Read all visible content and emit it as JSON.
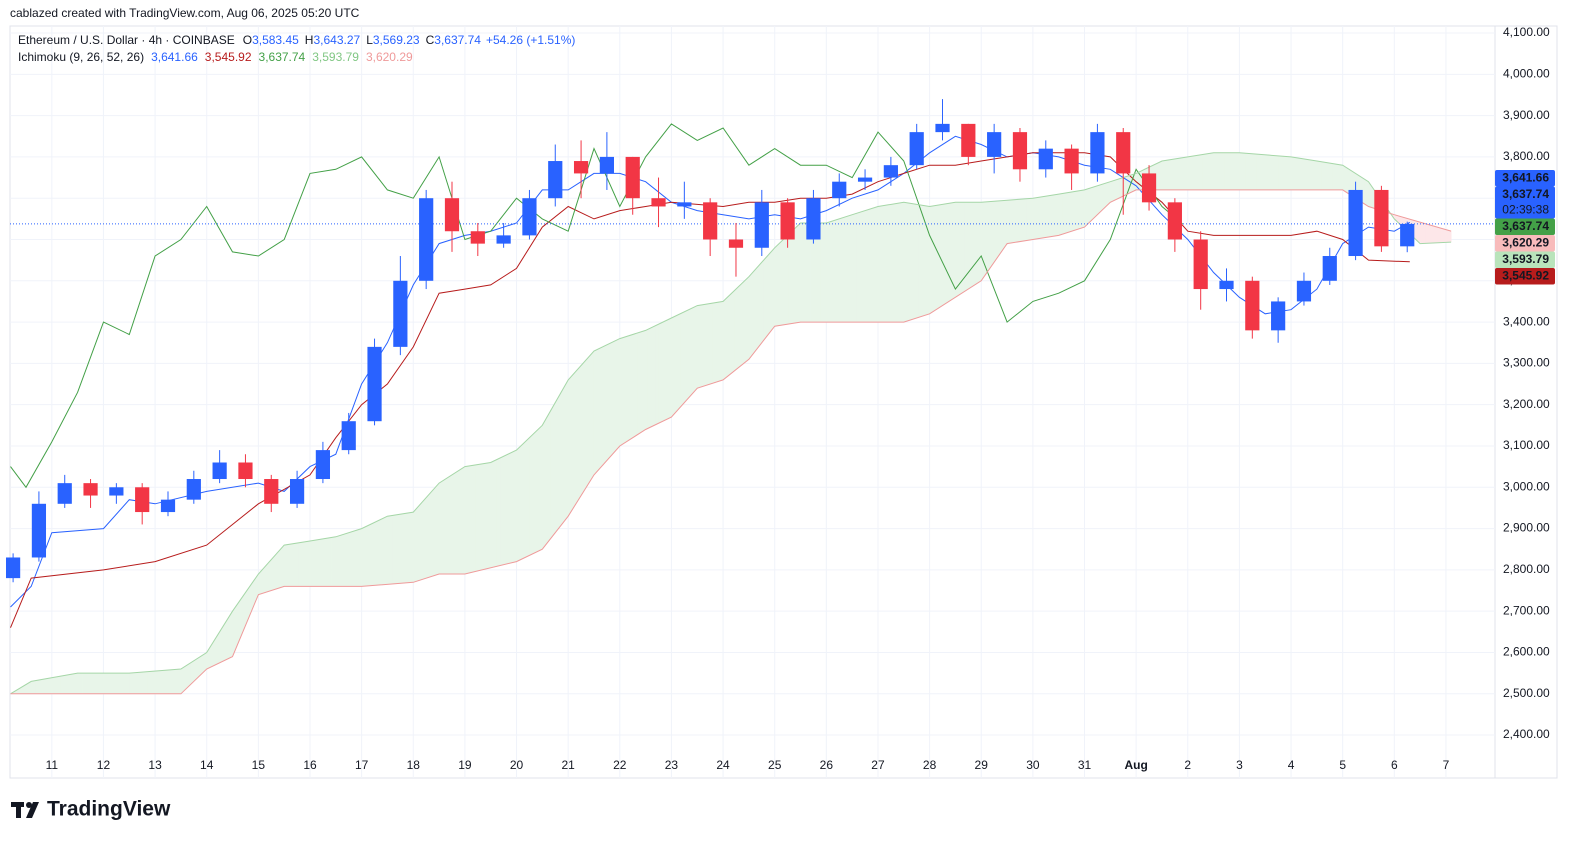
{
  "credit": "cablazed created with TradingView.com, Aug 06, 2025 05:20 UTC",
  "symbol": "Ethereum / U.S. Dollar · 4h · COINBASE",
  "ohlc": [
    {
      "key": "O",
      "label": "3,583.45"
    },
    {
      "key": "H",
      "label": "3,643.27"
    },
    {
      "key": "L",
      "label": "3,569.23"
    },
    {
      "key": "C",
      "label": "3,637.74"
    }
  ],
  "change": "+54.26 (+1.51%)",
  "indicator": "Ichimoku (9, 26, 52, 26)",
  "indicator_values": [
    {
      "label": "3,641.66",
      "color": "#2962ff"
    },
    {
      "label": "3,545.92",
      "color": "#b71c1c"
    },
    {
      "label": "3,637.74",
      "color": "#43a047"
    },
    {
      "label": "3,593.79",
      "color": "#81c784"
    },
    {
      "label": "3,620.29",
      "color": "#ef9a9a"
    }
  ],
  "brand": "TradingView",
  "chart_data": {
    "type": "candlestick",
    "up_color": "#2962ff",
    "down_color": "#f23645",
    "x": [
      10.25,
      10.75,
      11.25,
      11.75,
      12.25,
      12.75,
      13.25,
      13.75,
      14.25,
      14.75,
      15.25,
      15.75,
      16.25,
      16.75,
      17.25,
      17.75,
      18.25,
      18.75,
      19.25,
      19.75,
      20.25,
      20.75,
      21.25,
      21.75,
      22.25,
      22.75,
      23.25,
      23.75,
      24.25,
      24.75,
      25.25,
      25.75,
      26.25,
      26.75,
      27.25,
      27.75,
      28.25,
      28.75,
      29.25,
      29.75,
      30.25,
      30.75,
      31.25,
      31.75,
      32.25,
      32.75,
      33.25,
      33.75,
      34.25,
      34.75,
      35.25,
      35.75,
      36.25,
      36.75,
      37.25
    ],
    "open": [
      2780,
      2830,
      2960,
      3010,
      2980,
      3000,
      2940,
      2970,
      3020,
      3060,
      3020,
      2960,
      3020,
      3090,
      3160,
      3340,
      3500,
      3700,
      3620,
      3590,
      3610,
      3700,
      3790,
      3760,
      3800,
      3700,
      3680,
      3690,
      3600,
      3580,
      3690,
      3600,
      3700,
      3740,
      3750,
      3780,
      3860,
      3880,
      3800,
      3860,
      3770,
      3820,
      3760,
      3860,
      3760,
      3690,
      3600,
      3480,
      3500,
      3380,
      3450,
      3500,
      3560,
      3720,
      3583.45
    ],
    "high": [
      2840,
      2990,
      3030,
      3020,
      3010,
      3010,
      2990,
      3040,
      3090,
      3080,
      3030,
      3040,
      3110,
      3180,
      3360,
      3560,
      3720,
      3740,
      3640,
      3640,
      3720,
      3830,
      3840,
      3860,
      3800,
      3750,
      3740,
      3700,
      3640,
      3720,
      3700,
      3720,
      3760,
      3770,
      3800,
      3880,
      3940,
      3880,
      3880,
      3870,
      3840,
      3830,
      3880,
      3870,
      3780,
      3700,
      3620,
      3530,
      3510,
      3460,
      3520,
      3580,
      3740,
      3730,
      3643.27
    ],
    "low": [
      2770,
      2820,
      2950,
      2950,
      2960,
      2910,
      2930,
      2960,
      3010,
      3000,
      2940,
      2950,
      3010,
      3080,
      3150,
      3320,
      3480,
      3570,
      3560,
      3580,
      3600,
      3680,
      3700,
      3720,
      3660,
      3630,
      3650,
      3560,
      3510,
      3560,
      3580,
      3590,
      3680,
      3720,
      3730,
      3770,
      3840,
      3780,
      3760,
      3740,
      3750,
      3720,
      3740,
      3660,
      3670,
      3570,
      3430,
      3450,
      3360,
      3350,
      3440,
      3490,
      3550,
      3570,
      3569.23
    ],
    "close": [
      2830,
      2960,
      3010,
      2980,
      3000,
      2940,
      2970,
      3020,
      3060,
      3020,
      2960,
      3020,
      3090,
      3160,
      3340,
      3500,
      3700,
      3620,
      3590,
      3610,
      3700,
      3790,
      3760,
      3800,
      3700,
      3680,
      3690,
      3600,
      3580,
      3690,
      3600,
      3700,
      3740,
      3750,
      3780,
      3860,
      3880,
      3800,
      3860,
      3770,
      3820,
      3760,
      3860,
      3760,
      3690,
      3600,
      3480,
      3500,
      3380,
      3450,
      3500,
      3560,
      3720,
      3583.45,
      3637.74
    ],
    "lines": [
      {
        "color": "#2962ff",
        "x": [
          10.2,
          10.6,
          11,
          12,
          12.5,
          13,
          14,
          15,
          15.5,
          16,
          16.5,
          17,
          17.5,
          18,
          18.5,
          19,
          19.5,
          20,
          20.5,
          21,
          21.5,
          22,
          22.5,
          23,
          23.5,
          24,
          24.5,
          25,
          25.5,
          26,
          26.5,
          27,
          27.5,
          28,
          28.5,
          29,
          29.5,
          30,
          30.5,
          31,
          31.5,
          32,
          32.5,
          33,
          33.5,
          34,
          34.5,
          35,
          35.5,
          36,
          36.5,
          37,
          37.3
        ],
        "values": [
          2710,
          2760,
          2890,
          2900,
          2970,
          2960,
          2990,
          3010,
          2990,
          3050,
          3080,
          3250,
          3350,
          3490,
          3590,
          3610,
          3620,
          3640,
          3720,
          3720,
          3760,
          3760,
          3740,
          3690,
          3670,
          3660,
          3650,
          3660,
          3650,
          3670,
          3700,
          3720,
          3760,
          3810,
          3850,
          3830,
          3800,
          3810,
          3800,
          3780,
          3770,
          3730,
          3660,
          3600,
          3520,
          3460,
          3420,
          3430,
          3480,
          3590,
          3630,
          3620,
          3641.66
        ]
      },
      {
        "color": "#b71c1c",
        "x": [
          10.2,
          10.6,
          12,
          13,
          14,
          15,
          16,
          16.5,
          17,
          17.5,
          18,
          18.5,
          19,
          19.5,
          20,
          20.5,
          21,
          21.5,
          22,
          22.5,
          23,
          24,
          24.5,
          25,
          25.5,
          26,
          26.5,
          27,
          27.5,
          28,
          28.5,
          29,
          29.5,
          30,
          31,
          31.5,
          32,
          32.5,
          33,
          33.5,
          34,
          35,
          35.5,
          36,
          36.5,
          37.3
        ],
        "values": [
          2660,
          2780,
          2800,
          2820,
          2860,
          2960,
          3030,
          3120,
          3200,
          3250,
          3340,
          3470,
          3480,
          3490,
          3530,
          3630,
          3680,
          3650,
          3670,
          3680,
          3690,
          3680,
          3690,
          3690,
          3700,
          3700,
          3710,
          3740,
          3760,
          3780,
          3780,
          3790,
          3800,
          3810,
          3810,
          3800,
          3740,
          3690,
          3620,
          3610,
          3610,
          3610,
          3620,
          3600,
          3550,
          3545.92
        ]
      },
      {
        "color": "#43a047",
        "x": [
          10.2,
          10.5,
          11,
          11.5,
          12,
          12.5,
          13,
          13.5,
          14,
          14.5,
          15,
          15.5,
          16,
          16.5,
          17,
          17.5,
          18,
          18.5,
          19,
          19.5,
          20,
          20.5,
          21,
          21.5,
          22,
          22.5,
          23,
          23.5,
          24,
          24.5,
          25,
          25.5,
          26,
          26.5,
          27,
          27.5,
          28,
          28.5,
          29,
          29.5,
          30,
          30.5,
          31,
          31.5,
          32,
          32.5,
          32.9
        ],
        "values": [
          3050,
          3000,
          3110,
          3230,
          3400,
          3370,
          3560,
          3600,
          3680,
          3570,
          3560,
          3600,
          3760,
          3770,
          3800,
          3720,
          3700,
          3800,
          3600,
          3620,
          3700,
          3650,
          3620,
          3820,
          3680,
          3800,
          3880,
          3840,
          3870,
          3780,
          3820,
          3780,
          3780,
          3750,
          3860,
          3790,
          3610,
          3480,
          3560,
          3400,
          3450,
          3470,
          3500,
          3600,
          3770,
          3680,
          3637.74
        ]
      },
      {
        "color": "#a5d6a7",
        "x": [
          10.2,
          10.6,
          11.5,
          12.5,
          13.5,
          14,
          14.5,
          15,
          15.5,
          16,
          16.5,
          17,
          17.5,
          18,
          18.5,
          19,
          19.5,
          20,
          20.5,
          21,
          21.5,
          22,
          22.5,
          23,
          23.5,
          24,
          24.5,
          25,
          25.5,
          26,
          26.5,
          27,
          27.5,
          28,
          28.5,
          29,
          30,
          30.5,
          31,
          31.5,
          32,
          32.5,
          33,
          33.5,
          34,
          35,
          35.5,
          36,
          36.5,
          37,
          37.5,
          38.1
        ],
        "values": [
          2500,
          2530,
          2550,
          2550,
          2560,
          2600,
          2700,
          2790,
          2860,
          2870,
          2880,
          2900,
          2930,
          2940,
          3010,
          3050,
          3060,
          3090,
          3150,
          3260,
          3330,
          3360,
          3380,
          3410,
          3440,
          3450,
          3510,
          3580,
          3640,
          3640,
          3660,
          3680,
          3690,
          3680,
          3690,
          3690,
          3700,
          3710,
          3720,
          3740,
          3760,
          3790,
          3800,
          3810,
          3810,
          3800,
          3790,
          3780,
          3740,
          3650,
          3590,
          3593.79
        ]
      },
      {
        "color": "#ef9a9a",
        "x": [
          10.2,
          13.5,
          14,
          14.5,
          15,
          15.5,
          17,
          18,
          18.5,
          19,
          20,
          20.5,
          21,
          21.5,
          22,
          22.5,
          23,
          23.5,
          24,
          24.5,
          25,
          25.5,
          27.5,
          28,
          29,
          29.5,
          30,
          30.5,
          31,
          31.5,
          32,
          33,
          36,
          36.5,
          37,
          38.1
        ],
        "values": [
          2500,
          2500,
          2560,
          2590,
          2740,
          2760,
          2760,
          2770,
          2790,
          2790,
          2820,
          2850,
          2930,
          3030,
          3100,
          3140,
          3170,
          3240,
          3260,
          3310,
          3390,
          3400,
          3400,
          3420,
          3500,
          3590,
          3600,
          3610,
          3630,
          3690,
          3720,
          3720,
          3720,
          3680,
          3660,
          3620.29
        ]
      }
    ],
    "cloud_colors": [
      "#e8f5e9",
      "#fde7e9"
    ],
    "xlim": [
      10.19,
      38.95
    ],
    "xticks": [
      11,
      12,
      13,
      14,
      15,
      16,
      17,
      18,
      19,
      20,
      21,
      22,
      23,
      24,
      25,
      26,
      27,
      28,
      29,
      30,
      31,
      {
        "value": 32,
        "label": "Aug"
      },
      {
        "value": 33,
        "label": "2"
      },
      {
        "value": 34,
        "label": "3"
      },
      {
        "value": 35,
        "label": "4"
      },
      {
        "value": 36,
        "label": "5"
      },
      {
        "value": 37,
        "label": "6"
      },
      {
        "value": 38,
        "label": "7"
      }
    ],
    "ylim": [
      2296,
      4117
    ],
    "yticks": [
      {
        "value": 2400,
        "label": "2,400.00"
      },
      {
        "value": 2500,
        "label": "2,500.00"
      },
      {
        "value": 2600,
        "label": "2,600.00"
      },
      {
        "value": 2700,
        "label": "2,700.00"
      },
      {
        "value": 2800,
        "label": "2,800.00"
      },
      {
        "value": 2900,
        "label": "2,900.00"
      },
      {
        "value": 3000,
        "label": "3,000.00"
      },
      {
        "value": 3100,
        "label": "3,100.00"
      },
      {
        "value": 3200,
        "label": "3,200.00"
      },
      {
        "value": 3300,
        "label": "3,300.00"
      },
      {
        "value": 3400,
        "label": "3,400.00"
      },
      {
        "value": 3500,
        "label": "3,500.00"
      },
      {
        "value": 3600,
        "label": "3,600.00"
      },
      {
        "value": 3700,
        "label": "3,700.00"
      },
      {
        "value": 3800,
        "label": "3,800.00"
      },
      {
        "value": 3900,
        "label": "3,900.00"
      },
      {
        "value": 4000,
        "label": "4,000.00"
      },
      {
        "value": 4100,
        "label": "4,100.00"
      }
    ],
    "grid": true,
    "price_tags": [
      {
        "value": 3641.66,
        "label": "3,641.66",
        "color": "#2962ff",
        "text_color": "#ffffff"
      },
      {
        "value": 3637.74,
        "label": "3,637.74",
        "color": "#2962ff",
        "text_color": "#ffffff",
        "sublabel": "02:39:38"
      },
      {
        "value": 3637.74,
        "label": "3,637.74",
        "color": "#43a047",
        "text_color": "#ffffff"
      },
      {
        "value": 3620.29,
        "label": "3,620.29",
        "color": "#f8bbbb",
        "text_color": "#131722"
      },
      {
        "value": 3593.79,
        "label": "3,593.79",
        "color": "#b9e4bb",
        "text_color": "#131722"
      },
      {
        "value": 3545.92,
        "label": "3,545.92",
        "color": "#b71c1c",
        "text_color": "#ffffff"
      }
    ]
  }
}
